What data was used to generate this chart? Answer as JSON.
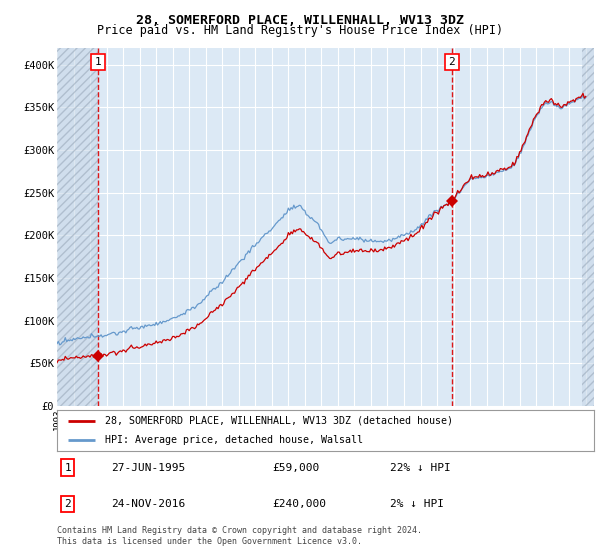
{
  "title": "28, SOMERFORD PLACE, WILLENHALL, WV13 3DZ",
  "subtitle": "Price paid vs. HM Land Registry's House Price Index (HPI)",
  "ylim": [
    0,
    420000
  ],
  "yticks": [
    0,
    50000,
    100000,
    150000,
    200000,
    250000,
    300000,
    350000,
    400000
  ],
  "ytick_labels": [
    "£0",
    "£50K",
    "£100K",
    "£150K",
    "£200K",
    "£250K",
    "£300K",
    "£350K",
    "£400K"
  ],
  "xlim_start": 1993.0,
  "xlim_end": 2025.5,
  "sale1_x": 1995.48,
  "sale1_y": 59000,
  "sale2_x": 2016.9,
  "sale2_y": 240000,
  "hatch_right_start": 2024.75,
  "bg_color": "#dce9f5",
  "grid_color": "#ffffff",
  "legend_label1": "28, SOMERFORD PLACE, WILLENHALL, WV13 3DZ (detached house)",
  "legend_label2": "HPI: Average price, detached house, Walsall",
  "info1_label": "27-JUN-1995",
  "info1_price": "£59,000",
  "info1_hpi": "22% ↓ HPI",
  "info2_label": "24-NOV-2016",
  "info2_price": "£240,000",
  "info2_hpi": "2% ↓ HPI",
  "footer": "Contains HM Land Registry data © Crown copyright and database right 2024.\nThis data is licensed under the Open Government Licence v3.0.",
  "red_line_color": "#cc0000",
  "blue_line_color": "#6699cc",
  "marker_color": "#cc0000",
  "title_fontsize": 9.5,
  "subtitle_fontsize": 8.5
}
